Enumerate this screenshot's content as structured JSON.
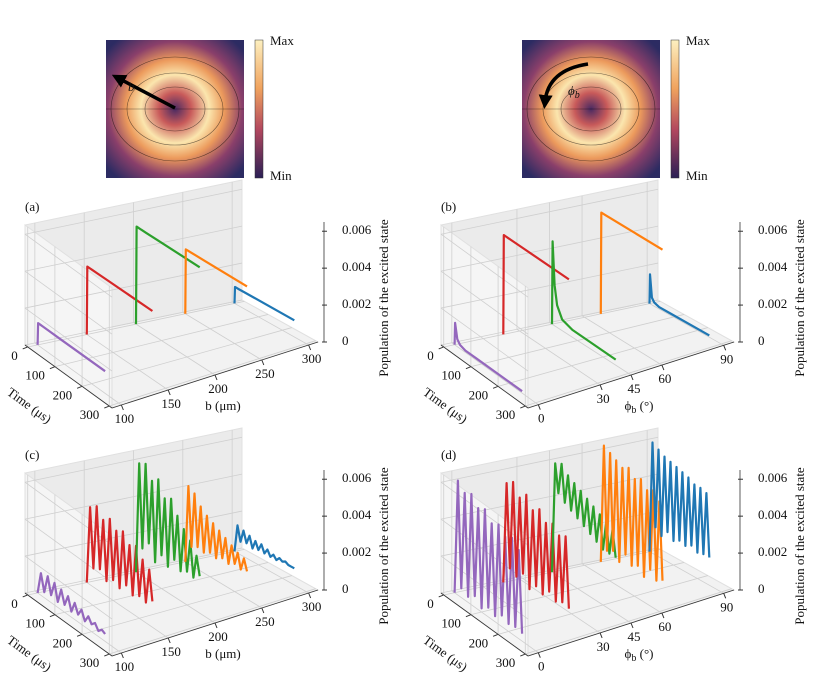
{
  "colormaps": [
    {
      "max_label": "Max",
      "min_label": "Min",
      "arrow_label": "b"
    },
    {
      "max_label": "Max",
      "min_label": "Min",
      "arrow_label": {
        "main": "ϕ",
        "sub": "b"
      }
    }
  ],
  "chart_data": [
    {
      "type": "line3d",
      "panel_label": "(a)",
      "x_label": "b (μm)",
      "y_label": "Time (μs)",
      "z_label": "Population of the excited state",
      "xlim": [
        90,
        310
      ],
      "xticks": [
        100,
        150,
        200,
        250,
        300
      ],
      "ylim": [
        -10,
        310
      ],
      "yticks": [
        0,
        100,
        200,
        300
      ],
      "zlim": [
        0,
        0.0065
      ],
      "zticks": [
        0,
        0.002,
        0.004,
        0.006
      ],
      "time": [
        0,
        2,
        10,
        20,
        40,
        80,
        250
      ],
      "series": [
        {
          "color": "#9467bd",
          "position": 100,
          "values": [
            0,
            0.0012,
            0.0012,
            0.0012,
            0.0012,
            0.0012,
            0.0012
          ]
        },
        {
          "color": "#d62728",
          "position": 150,
          "values": [
            0,
            0.0037,
            0.0037,
            0.0037,
            0.0037,
            0.0037,
            0.0037
          ]
        },
        {
          "color": "#2ca02c",
          "position": 200,
          "values": [
            0,
            0.0053,
            0.0053,
            0.0053,
            0.0053,
            0.0053,
            0.0053
          ]
        },
        {
          "color": "#ff7f0e",
          "position": 250,
          "values": [
            0,
            0.0035,
            0.0035,
            0.0035,
            0.0035,
            0.0035,
            0.0035
          ]
        },
        {
          "color": "#1f77b4",
          "position": 300,
          "values": [
            0,
            0.0009,
            0.0009,
            0.0009,
            0.0009,
            0.0009,
            0.0009
          ]
        }
      ]
    },
    {
      "type": "line3d",
      "panel_label": "(b)",
      "x_label": {
        "main": "ϕ",
        "sub": "b",
        "unit": " (°)"
      },
      "y_label": "Time (μs)",
      "z_label": "Population of the excited state",
      "xlim": [
        -5,
        95
      ],
      "xticks": [
        0,
        30,
        45,
        60,
        90
      ],
      "ylim": [
        -10,
        310
      ],
      "yticks": [
        0,
        100,
        200,
        300
      ],
      "zlim": [
        0,
        0.0065
      ],
      "zticks": [
        0,
        0.002,
        0.004,
        0.006
      ],
      "time": [
        0,
        2,
        10,
        20,
        40,
        80,
        250
      ],
      "series": [
        {
          "color": "#9467bd",
          "position": 0,
          "values": [
            0,
            0.0012,
            0.0004,
            0.0002,
            0.0001,
            0.0001,
            0.0001
          ]
        },
        {
          "color": "#d62728",
          "position": 22.5,
          "values": [
            0,
            0.0054,
            0.0054,
            0.0054,
            0.0054,
            0.0054,
            0.0054
          ]
        },
        {
          "color": "#2ca02c",
          "position": 45,
          "values": [
            0,
            0.0045,
            0.0022,
            0.0012,
            0.0006,
            0.0004,
            0.0003
          ]
        },
        {
          "color": "#ff7f0e",
          "position": 67.5,
          "values": [
            0,
            0.0055,
            0.0055,
            0.0055,
            0.0055,
            0.0055,
            0.0055
          ]
        },
        {
          "color": "#1f77b4",
          "position": 90,
          "values": [
            0,
            0.0016,
            0.0004,
            0.0002,
            0.0001,
            0.0001,
            0.0001
          ]
        }
      ]
    },
    {
      "type": "line3d",
      "panel_label": "(c)",
      "x_label": "b (μm)",
      "y_label": "Time (μs)",
      "z_label": "Population of the excited state",
      "xlim": [
        90,
        310
      ],
      "xticks": [
        100,
        150,
        200,
        250,
        300
      ],
      "ylim": [
        -10,
        310
      ],
      "yticks": [
        0,
        100,
        200,
        300
      ],
      "zlim": [
        0,
        0.0065
      ],
      "zticks": [
        0,
        0.002,
        0.004,
        0.006
      ],
      "time": [
        0,
        12.5,
        25,
        37.5,
        50,
        62.5,
        75,
        87.5,
        100,
        112.5,
        125,
        137.5,
        150,
        162.5,
        175,
        187.5,
        200,
        212.5,
        225,
        237.5,
        250
      ],
      "series": [
        {
          "color": "#9467bd",
          "position": 100,
          "values": [
            0,
            0.0012,
            0.0003,
            0.0013,
            0.0004,
            0.0012,
            0.0003,
            0.0011,
            0.0004,
            0.001,
            0.0003,
            0.0009,
            0.0004,
            0.0008,
            0.0003,
            0.0007,
            0.0004,
            0.0006,
            0.0003,
            0.0005,
            0.0004
          ]
        },
        {
          "color": "#d62728",
          "position": 150,
          "values": [
            0,
            0.0042,
            0.001,
            0.0045,
            0.0012,
            0.004,
            0.0008,
            0.0043,
            0.0011,
            0.0039,
            0.0009,
            0.0041,
            0.0013,
            0.0036,
            0.001,
            0.0038,
            0.0012,
            0.0033,
            0.0011,
            0.003,
            0.0014
          ]
        },
        {
          "color": "#2ca02c",
          "position": 200,
          "values": [
            0,
            0.006,
            0.0015,
            0.0062,
            0.002,
            0.0055,
            0.0012,
            0.0058,
            0.0018,
            0.005,
            0.0014,
            0.0052,
            0.002,
            0.0045,
            0.0016,
            0.004,
            0.0018,
            0.0036,
            0.0017,
            0.003,
            0.002
          ]
        },
        {
          "color": "#ff7f0e",
          "position": 250,
          "values": [
            0,
            0.0042,
            0.001,
            0.004,
            0.0012,
            0.0035,
            0.0011,
            0.0032,
            0.0013,
            0.003,
            0.0012,
            0.0028,
            0.0014,
            0.0026,
            0.0013,
            0.0024,
            0.0015,
            0.0022,
            0.0014,
            0.0021,
            0.0015
          ]
        },
        {
          "color": "#1f77b4",
          "position": 300,
          "values": [
            0,
            0.0015,
            0.0007,
            0.0014,
            0.0008,
            0.0013,
            0.0007,
            0.0012,
            0.0008,
            0.0012,
            0.0008,
            0.0011,
            0.0008,
            0.001,
            0.0008,
            0.001,
            0.0009,
            0.001,
            0.0009,
            0.0009,
            0.0009
          ]
        }
      ]
    },
    {
      "type": "line3d",
      "panel_label": "(d)",
      "x_label": {
        "main": "ϕ",
        "sub": "b",
        "unit": " (°)"
      },
      "y_label": "Time (μs)",
      "z_label": "Population of the excited state",
      "xlim": [
        -5,
        95
      ],
      "xticks": [
        0,
        30,
        45,
        60,
        90
      ],
      "ylim": [
        -10,
        310
      ],
      "yticks": [
        0,
        100,
        200,
        300
      ],
      "zlim": [
        0,
        0.0065
      ],
      "zticks": [
        0,
        0.002,
        0.004,
        0.006
      ],
      "time": [
        0,
        12.5,
        25,
        37.5,
        50,
        62.5,
        75,
        87.5,
        100,
        112.5,
        125,
        137.5,
        150,
        162.5,
        175,
        187.5,
        200,
        212.5,
        225,
        237.5,
        250
      ],
      "series": [
        {
          "color": "#9467bd",
          "position": 0,
          "values": [
            0,
            0.0062,
            0.0005,
            0.0058,
            0.0003,
            0.006,
            0.0006,
            0.0055,
            0.0002,
            0.0057,
            0.0005,
            0.0052,
            0.0003,
            0.0054,
            0.0006,
            0.005,
            0.0004,
            0.0052,
            0.0005,
            0.0048,
            0.0004
          ]
        },
        {
          "color": "#d62728",
          "position": 22.5,
          "values": [
            0,
            0.0055,
            0.001,
            0.0058,
            0.0008,
            0.0052,
            0.0012,
            0.0056,
            0.0006,
            0.005,
            0.001,
            0.0053,
            0.0008,
            0.0048,
            0.0012,
            0.005,
            0.0009,
            0.0046,
            0.0011,
            0.0048,
            0.001
          ]
        },
        {
          "color": "#2ca02c",
          "position": 45,
          "values": [
            0,
            0.006,
            0.0045,
            0.0062,
            0.0042,
            0.0058,
            0.004,
            0.0056,
            0.0038,
            0.0054,
            0.0036,
            0.0052,
            0.0034,
            0.005,
            0.0032,
            0.0048,
            0.003,
            0.0046,
            0.003,
            0.0044,
            0.003
          ]
        },
        {
          "color": "#ff7f0e",
          "position": 67.5,
          "values": [
            0,
            0.0064,
            0.0008,
            0.0062,
            0.001,
            0.006,
            0.0006,
            0.0058,
            0.0012,
            0.006,
            0.0008,
            0.0056,
            0.001,
            0.0058,
            0.0006,
            0.0054,
            0.0012,
            0.0056,
            0.0008,
            0.0052,
            0.001
          ]
        },
        {
          "color": "#1f77b4",
          "position": 90,
          "values": [
            0,
            0.006,
            0.0015,
            0.0058,
            0.0012,
            0.0056,
            0.0016,
            0.0055,
            0.0013,
            0.0054,
            0.0015,
            0.0053,
            0.0014,
            0.0052,
            0.0016,
            0.005,
            0.0014,
            0.005,
            0.0015,
            0.0049,
            0.0015
          ]
        }
      ]
    }
  ]
}
